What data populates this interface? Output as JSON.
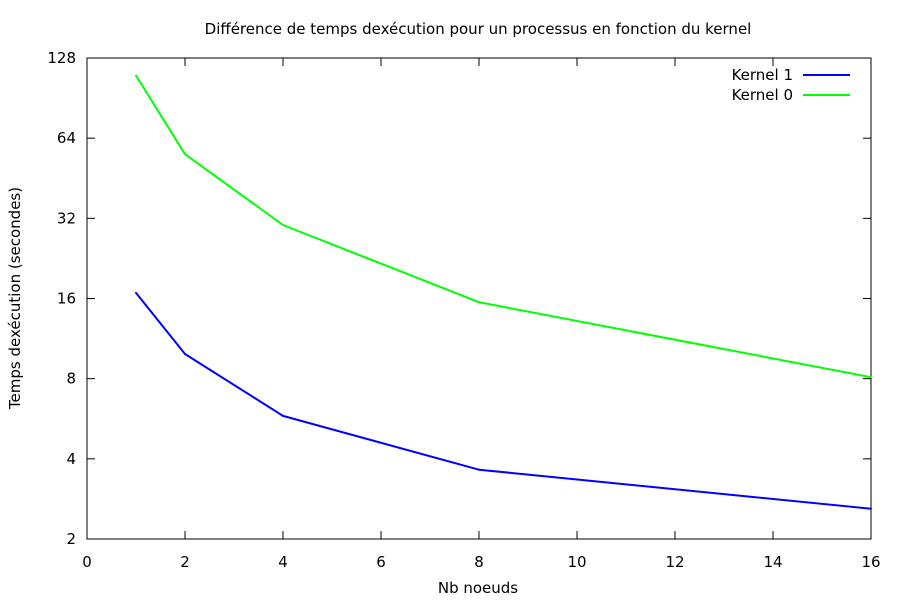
{
  "chart_data": {
    "type": "line",
    "title": "Différence de temps dexécution pour un processus en fonction du kernel",
    "xlabel": "Nb noeuds",
    "ylabel": "Temps dexécution (secondes)",
    "xlim": [
      0,
      16
    ],
    "ylim": [
      2,
      128
    ],
    "yscale": "log2",
    "grid": false,
    "legend_position": "top-right",
    "x_ticks": [
      0,
      2,
      4,
      6,
      8,
      10,
      12,
      14,
      16
    ],
    "y_ticks": [
      2,
      4,
      8,
      16,
      32,
      64,
      128
    ],
    "series": [
      {
        "name": "Kernel 1",
        "color": "#0000ff",
        "x": [
          1,
          2,
          4,
          8,
          16
        ],
        "y": [
          16.8,
          9.9,
          5.8,
          3.64,
          2.6
        ]
      },
      {
        "name": "Kernel 0",
        "color": "#00ff00",
        "x": [
          1,
          2,
          4,
          8,
          16
        ],
        "y": [
          110,
          55.7,
          30.2,
          15.5,
          8.1
        ]
      }
    ]
  }
}
